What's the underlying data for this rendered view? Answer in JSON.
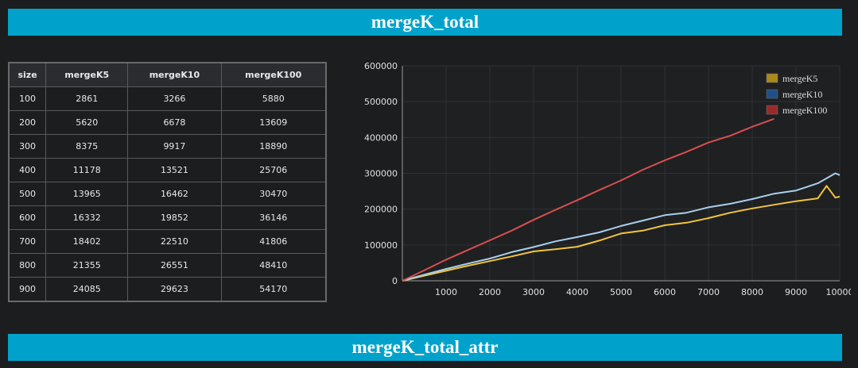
{
  "banners": {
    "top": "mergeK_total",
    "bottom": "mergeK_total_attr"
  },
  "table": {
    "headers": [
      "size",
      "mergeK5",
      "mergeK10",
      "mergeK100"
    ],
    "rows": [
      [
        "100",
        "2861",
        "3266",
        "5880"
      ],
      [
        "200",
        "5620",
        "6678",
        "13609"
      ],
      [
        "300",
        "8375",
        "9917",
        "18890"
      ],
      [
        "400",
        "11178",
        "13521",
        "25706"
      ],
      [
        "500",
        "13965",
        "16462",
        "30470"
      ],
      [
        "600",
        "16332",
        "19852",
        "36146"
      ],
      [
        "700",
        "18402",
        "22510",
        "41806"
      ],
      [
        "800",
        "21355",
        "26551",
        "48410"
      ],
      [
        "900",
        "24085",
        "29623",
        "54170"
      ]
    ]
  },
  "chart_data": {
    "type": "line",
    "title": "",
    "xlabel": "",
    "ylabel": "",
    "xlim": [
      0,
      10000
    ],
    "ylim": [
      0,
      600000
    ],
    "xticks": [
      1000,
      2000,
      3000,
      4000,
      5000,
      6000,
      7000,
      8000,
      9000,
      10000
    ],
    "yticks": [
      0,
      100000,
      200000,
      300000,
      400000,
      500000,
      600000
    ],
    "grid": true,
    "legend_position": "top-right",
    "series": [
      {
        "name": "mergeK5",
        "color": "#f2c53c",
        "legend_color": "#a8891a",
        "x": [
          0,
          500,
          1000,
          1500,
          2000,
          2500,
          3000,
          3500,
          4000,
          4500,
          5000,
          5500,
          6000,
          6500,
          7000,
          7500,
          8000,
          8500,
          9000,
          9500,
          9700,
          9900,
          10000
        ],
        "y": [
          0,
          14000,
          28000,
          42000,
          55000,
          68000,
          82000,
          88000,
          95000,
          112000,
          132000,
          140000,
          155000,
          162000,
          175000,
          190000,
          202000,
          212000,
          222000,
          230000,
          265000,
          232000,
          235000
        ]
      },
      {
        "name": "mergeK10",
        "color": "#a9cfee",
        "legend_color": "#1f4f86",
        "x": [
          0,
          500,
          1000,
          1500,
          2000,
          2500,
          3000,
          3500,
          4000,
          4500,
          5000,
          5500,
          6000,
          6500,
          7000,
          7500,
          8000,
          8500,
          9000,
          9500,
          9900,
          10000
        ],
        "y": [
          0,
          17000,
          33000,
          48000,
          62000,
          80000,
          94000,
          110000,
          122000,
          135000,
          153000,
          168000,
          183000,
          190000,
          205000,
          215000,
          228000,
          243000,
          252000,
          272000,
          300000,
          295000
        ]
      },
      {
        "name": "mergeK100",
        "color": "#d94f4f",
        "legend_color": "#9a2a2a",
        "x": [
          0,
          500,
          1000,
          1500,
          2000,
          2500,
          3000,
          3500,
          4000,
          4500,
          5000,
          5500,
          6000,
          6500,
          7000,
          7500,
          8000,
          8500
        ],
        "y": [
          0,
          29000,
          59000,
          86000,
          113000,
          140000,
          170000,
          198000,
          225000,
          253000,
          280000,
          310000,
          336000,
          360000,
          386000,
          405000,
          430000,
          452000
        ]
      }
    ]
  }
}
